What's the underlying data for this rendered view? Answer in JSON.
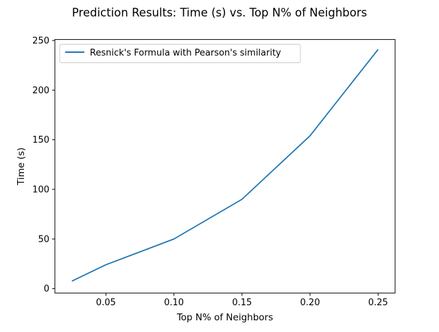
{
  "chart_data": {
    "type": "line",
    "title": "Prediction Results: Time (s) vs. Top N% of Neighbors",
    "xlabel": "Top N% of Neighbors",
    "ylabel": "Time (s)",
    "xlim": [
      0.0125,
      0.2625
    ],
    "ylim": [
      -4.5,
      251
    ],
    "x_ticks": [
      0.05,
      0.1,
      0.15,
      0.2,
      0.25
    ],
    "x_tick_labels": [
      "0.05",
      "0.10",
      "0.15",
      "0.20",
      "0.25"
    ],
    "y_ticks": [
      0,
      50,
      100,
      150,
      200,
      250
    ],
    "y_tick_labels": [
      "0",
      "50",
      "100",
      "150",
      "200",
      "250"
    ],
    "grid": false,
    "legend_position": "upper-left",
    "series": [
      {
        "name": "Resnick's Formula with Pearson's similarity",
        "color": "#1f77b4",
        "x": [
          0.025,
          0.05,
          0.1,
          0.15,
          0.2,
          0.25
        ],
        "y": [
          7.5,
          24,
          50,
          90,
          154,
          241
        ]
      }
    ]
  }
}
